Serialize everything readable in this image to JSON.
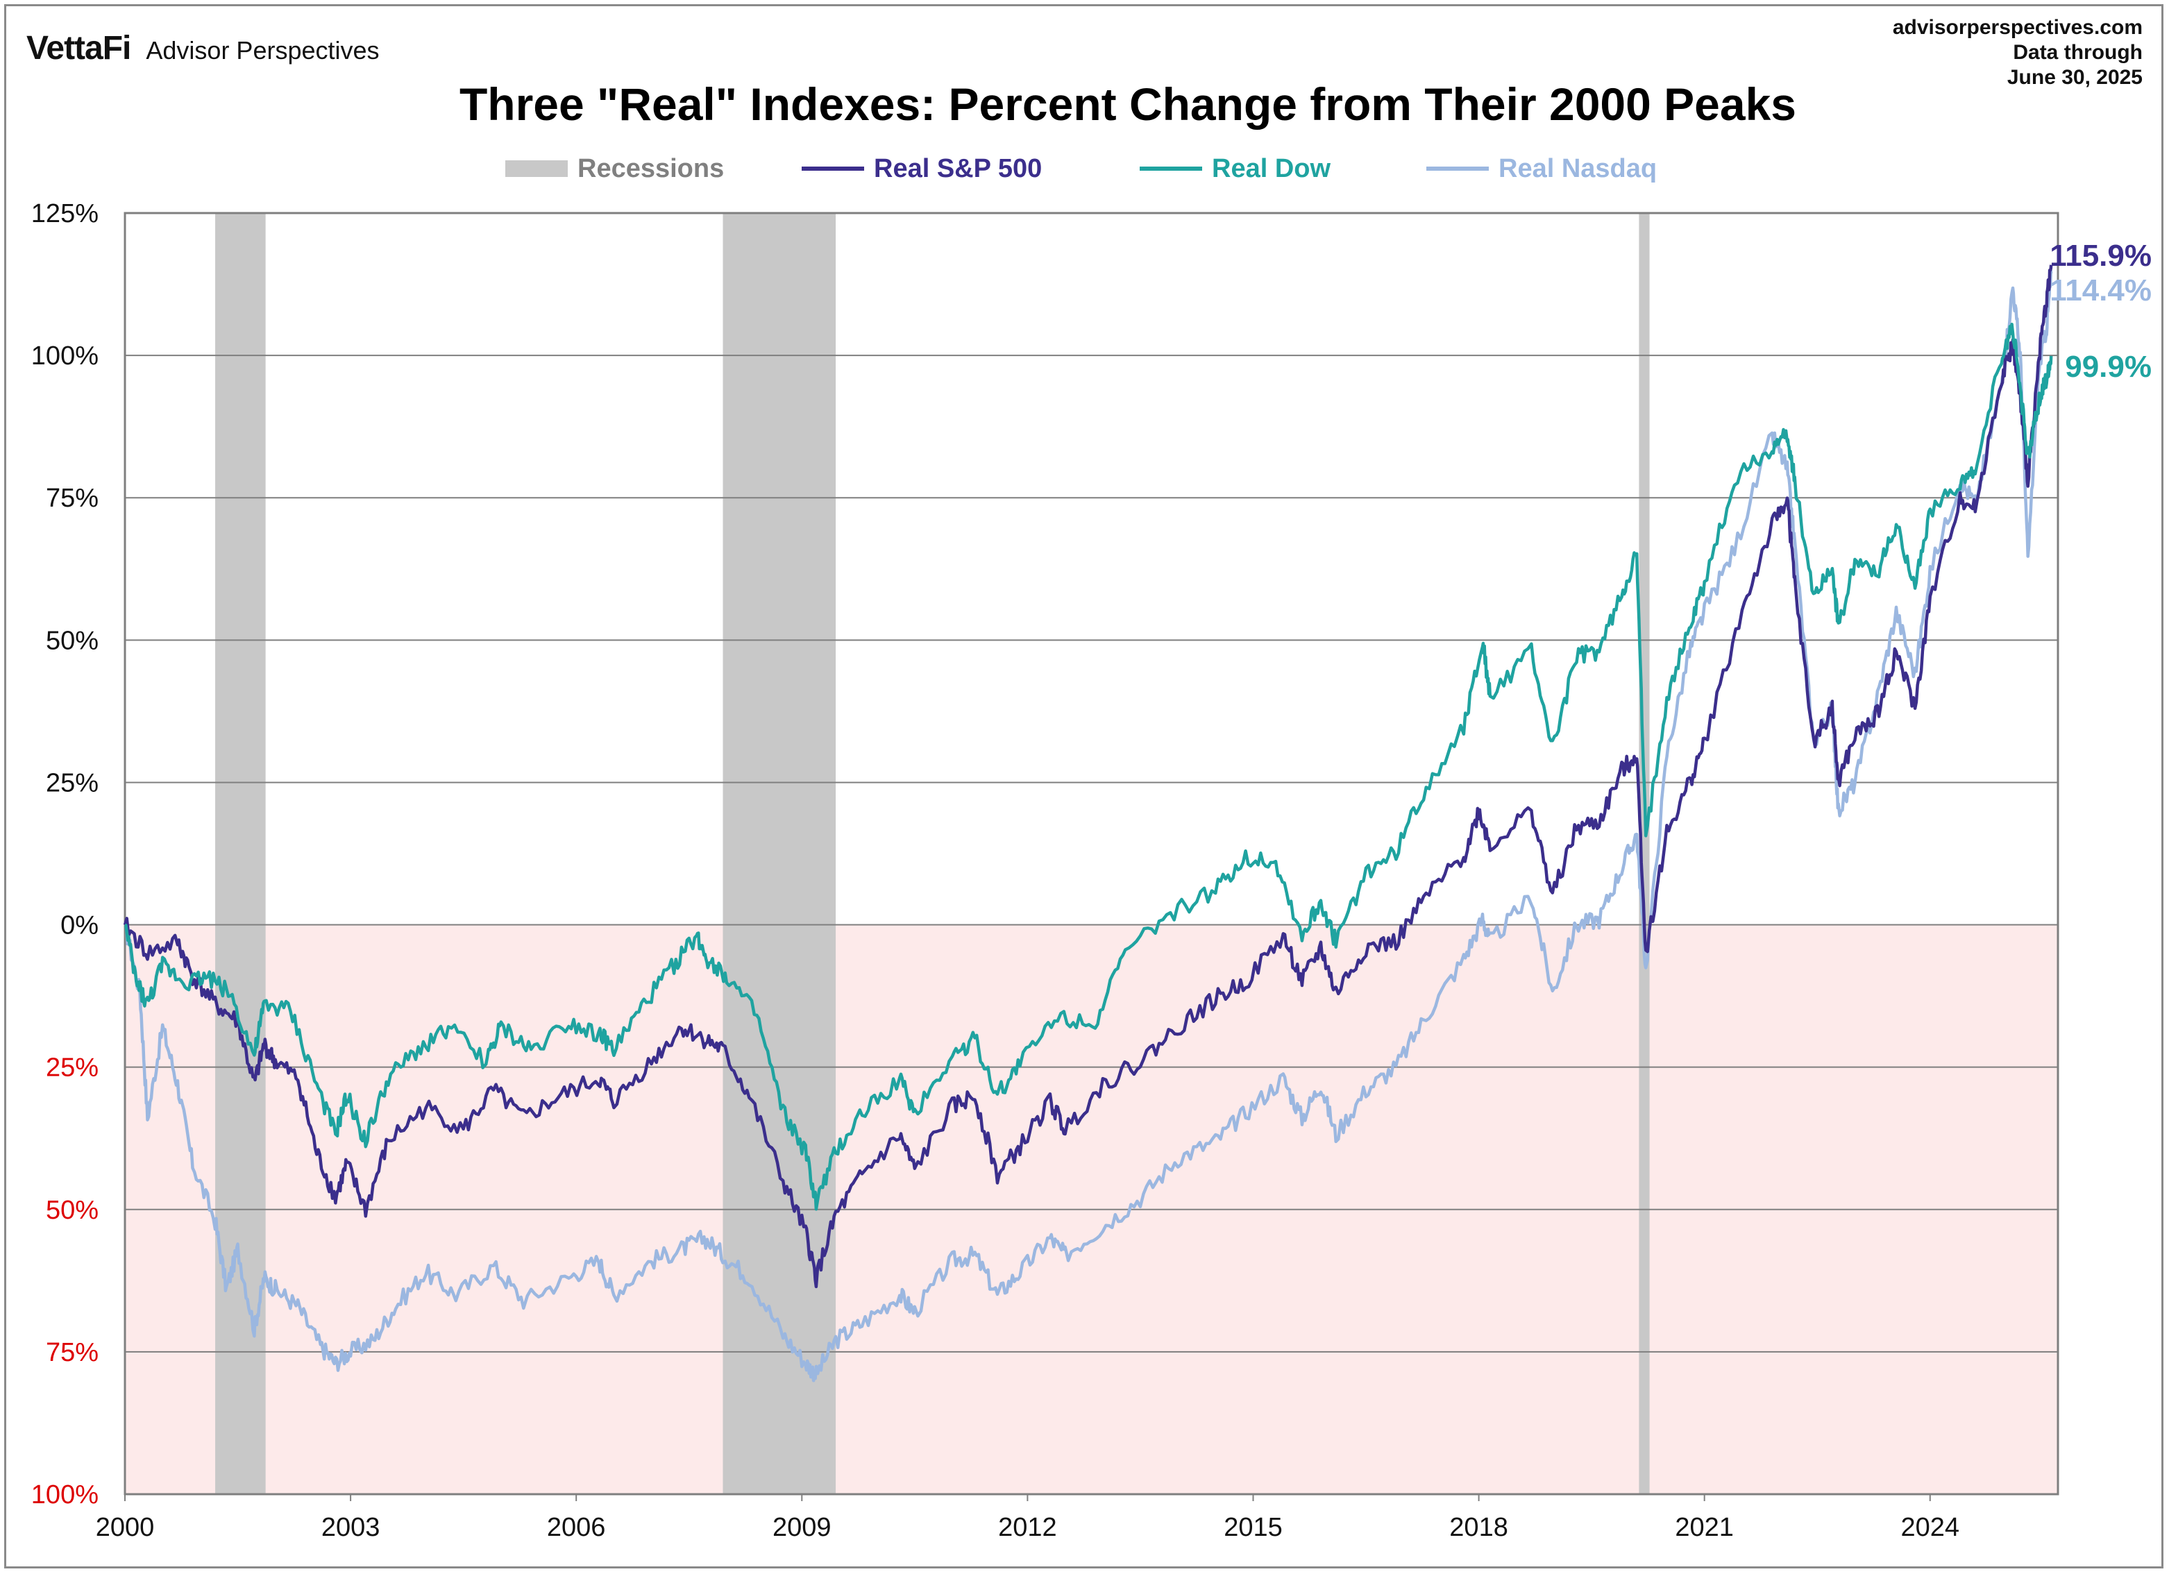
{
  "header": {
    "brand": "VettaFi",
    "brand_sub": "Advisor Perspectives",
    "source_lines": [
      "advisorperspectives.com",
      "Data through",
      "June 30, 2025"
    ]
  },
  "legend": {
    "recessions": "Recessions",
    "sp500": "Real S&P 500",
    "dow": "Real Dow",
    "nasdaq": "Real Nasdaq"
  },
  "colors": {
    "sp500": "#3b2e8c",
    "dow": "#1fa3a0",
    "nasdaq": "#9bb7e0",
    "recession": "#c8c8c8",
    "negative_zone": "#fdeaea",
    "negative_tick": "#dd0000",
    "grid": "#7f7f7f"
  },
  "chart_data": {
    "type": "line",
    "title": "Three \"Real\" Indexes: Percent Change from Their 2000 Peaks",
    "x_ticks": [
      "2000",
      "2003",
      "2006",
      "2009",
      "2012",
      "2015",
      "2018",
      "2021",
      "2024"
    ],
    "y_ticks": [
      {
        "value": 125,
        "label": "125%"
      },
      {
        "value": 100,
        "label": "100%"
      },
      {
        "value": 75,
        "label": "75%"
      },
      {
        "value": 50,
        "label": "50%"
      },
      {
        "value": 25,
        "label": "25%"
      },
      {
        "value": 0,
        "label": "0%"
      },
      {
        "value": -25,
        "label": "25%"
      },
      {
        "value": -50,
        "label": "50%"
      },
      {
        "value": -75,
        "label": "75%"
      },
      {
        "value": -100,
        "label": "100%"
      }
    ],
    "xlim": [
      2000.0,
      2025.7
    ],
    "ylim": [
      -100,
      125
    ],
    "grid": true,
    "shaded_negative_region": true,
    "recessions": [
      [
        2001.2,
        2001.87
      ],
      [
        2007.95,
        2009.45
      ],
      [
        2020.13,
        2020.27
      ]
    ],
    "series": [
      {
        "name": "Real S&P 500",
        "key": "sp500",
        "end_label": "115.9%",
        "end_value": 115.9,
        "points": [
          [
            2000.0,
            0
          ],
          [
            2000.3,
            -5
          ],
          [
            2000.7,
            -3
          ],
          [
            2000.9,
            -9
          ],
          [
            2001.2,
            -14
          ],
          [
            2001.5,
            -17
          ],
          [
            2001.72,
            -28
          ],
          [
            2001.85,
            -21
          ],
          [
            2002.0,
            -24
          ],
          [
            2002.3,
            -27
          ],
          [
            2002.55,
            -40
          ],
          [
            2002.8,
            -48
          ],
          [
            2002.95,
            -42
          ],
          [
            2003.2,
            -50
          ],
          [
            2003.5,
            -38
          ],
          [
            2004.0,
            -32
          ],
          [
            2004.5,
            -36
          ],
          [
            2004.9,
            -29
          ],
          [
            2005.3,
            -34
          ],
          [
            2005.8,
            -30
          ],
          [
            2006.3,
            -27
          ],
          [
            2006.5,
            -31
          ],
          [
            2007.0,
            -24
          ],
          [
            2007.4,
            -18
          ],
          [
            2007.7,
            -20
          ],
          [
            2007.95,
            -22
          ],
          [
            2008.3,
            -30
          ],
          [
            2008.75,
            -45
          ],
          [
            2009.05,
            -54
          ],
          [
            2009.19,
            -62
          ],
          [
            2009.45,
            -51
          ],
          [
            2009.8,
            -44
          ],
          [
            2010.3,
            -37
          ],
          [
            2010.5,
            -43
          ],
          [
            2011.0,
            -32
          ],
          [
            2011.3,
            -30
          ],
          [
            2011.6,
            -44
          ],
          [
            2011.9,
            -39
          ],
          [
            2012.3,
            -31
          ],
          [
            2012.5,
            -36
          ],
          [
            2013.0,
            -28
          ],
          [
            2013.5,
            -24
          ],
          [
            2014.0,
            -18
          ],
          [
            2014.5,
            -13
          ],
          [
            2014.9,
            -10
          ],
          [
            2015.4,
            -2
          ],
          [
            2015.65,
            -10
          ],
          [
            2015.9,
            -4
          ],
          [
            2016.1,
            -12
          ],
          [
            2016.5,
            -4
          ],
          [
            2016.9,
            -3
          ],
          [
            2017.3,
            5
          ],
          [
            2017.8,
            12
          ],
          [
            2018.0,
            20
          ],
          [
            2018.15,
            14
          ],
          [
            2018.7,
            20
          ],
          [
            2018.98,
            5
          ],
          [
            2019.3,
            17
          ],
          [
            2019.6,
            18
          ],
          [
            2019.9,
            27
          ],
          [
            2020.1,
            30
          ],
          [
            2020.22,
            -5
          ],
          [
            2020.5,
            16
          ],
          [
            2020.8,
            25
          ],
          [
            2021.0,
            32
          ],
          [
            2021.5,
            55
          ],
          [
            2021.9,
            70
          ],
          [
            2022.1,
            75
          ],
          [
            2022.2,
            60
          ],
          [
            2022.45,
            32
          ],
          [
            2022.7,
            38
          ],
          [
            2022.78,
            25
          ],
          [
            2023.0,
            33
          ],
          [
            2023.3,
            37
          ],
          [
            2023.55,
            48
          ],
          [
            2023.8,
            38
          ],
          [
            2024.0,
            57
          ],
          [
            2024.4,
            75
          ],
          [
            2024.6,
            73
          ],
          [
            2024.95,
            96
          ],
          [
            2025.1,
            102
          ],
          [
            2025.2,
            92
          ],
          [
            2025.3,
            78
          ],
          [
            2025.45,
            100
          ],
          [
            2025.55,
            110
          ],
          [
            2025.61,
            115.9
          ]
        ]
      },
      {
        "name": "Real Dow",
        "key": "dow",
        "end_label": "99.9%",
        "end_value": 99.9,
        "points": [
          [
            2000.0,
            0
          ],
          [
            2000.15,
            -10
          ],
          [
            2000.3,
            -14
          ],
          [
            2000.5,
            -7
          ],
          [
            2000.8,
            -10
          ],
          [
            2001.1,
            -9
          ],
          [
            2001.4,
            -12
          ],
          [
            2001.72,
            -23
          ],
          [
            2001.85,
            -14
          ],
          [
            2002.2,
            -15
          ],
          [
            2002.55,
            -28
          ],
          [
            2002.8,
            -37
          ],
          [
            2002.95,
            -30
          ],
          [
            2003.2,
            -38
          ],
          [
            2003.5,
            -27
          ],
          [
            2003.9,
            -22
          ],
          [
            2004.3,
            -18
          ],
          [
            2004.8,
            -24
          ],
          [
            2005.0,
            -18
          ],
          [
            2005.4,
            -22
          ],
          [
            2005.9,
            -17
          ],
          [
            2006.3,
            -19
          ],
          [
            2006.5,
            -22
          ],
          [
            2006.9,
            -14
          ],
          [
            2007.3,
            -7
          ],
          [
            2007.6,
            -2
          ],
          [
            2007.75,
            -6
          ],
          [
            2008.0,
            -9
          ],
          [
            2008.4,
            -16
          ],
          [
            2008.75,
            -33
          ],
          [
            2009.05,
            -40
          ],
          [
            2009.19,
            -49
          ],
          [
            2009.45,
            -40
          ],
          [
            2009.8,
            -33
          ],
          [
            2010.3,
            -27
          ],
          [
            2010.5,
            -33
          ],
          [
            2011.0,
            -23
          ],
          [
            2011.3,
            -20
          ],
          [
            2011.6,
            -30
          ],
          [
            2011.9,
            -24
          ],
          [
            2012.4,
            -16
          ],
          [
            2012.9,
            -17
          ],
          [
            2013.3,
            -5
          ],
          [
            2013.9,
            2
          ],
          [
            2014.5,
            6
          ],
          [
            2014.9,
            12
          ],
          [
            2015.3,
            11
          ],
          [
            2015.65,
            -2
          ],
          [
            2015.9,
            4
          ],
          [
            2016.1,
            -3
          ],
          [
            2016.5,
            9
          ],
          [
            2016.9,
            13
          ],
          [
            2017.3,
            24
          ],
          [
            2017.8,
            35
          ],
          [
            2018.05,
            50
          ],
          [
            2018.15,
            40
          ],
          [
            2018.7,
            48
          ],
          [
            2018.98,
            31
          ],
          [
            2019.3,
            47
          ],
          [
            2019.6,
            48
          ],
          [
            2019.9,
            58
          ],
          [
            2020.1,
            65
          ],
          [
            2020.22,
            15
          ],
          [
            2020.5,
            40
          ],
          [
            2020.8,
            52
          ],
          [
            2021.0,
            60
          ],
          [
            2021.4,
            78
          ],
          [
            2021.9,
            84
          ],
          [
            2022.1,
            86
          ],
          [
            2022.2,
            78
          ],
          [
            2022.45,
            58
          ],
          [
            2022.7,
            63
          ],
          [
            2022.78,
            52
          ],
          [
            2023.0,
            64
          ],
          [
            2023.3,
            62
          ],
          [
            2023.55,
            70
          ],
          [
            2023.8,
            60
          ],
          [
            2024.0,
            72
          ],
          [
            2024.4,
            78
          ],
          [
            2024.6,
            79
          ],
          [
            2024.95,
            100
          ],
          [
            2025.1,
            105
          ],
          [
            2025.2,
            94
          ],
          [
            2025.3,
            82
          ],
          [
            2025.45,
            92
          ],
          [
            2025.55,
            96
          ],
          [
            2025.61,
            99.9
          ]
        ]
      },
      {
        "name": "Real Nasdaq",
        "key": "nasdaq",
        "end_label": "114.4%",
        "end_value": 114.4,
        "points": [
          [
            2000.0,
            0
          ],
          [
            2000.2,
            -12
          ],
          [
            2000.3,
            -34
          ],
          [
            2000.5,
            -18
          ],
          [
            2000.7,
            -28
          ],
          [
            2000.9,
            -42
          ],
          [
            2001.2,
            -52
          ],
          [
            2001.35,
            -64
          ],
          [
            2001.5,
            -57
          ],
          [
            2001.72,
            -71
          ],
          [
            2001.85,
            -62
          ],
          [
            2002.0,
            -64
          ],
          [
            2002.3,
            -67
          ],
          [
            2002.6,
            -74
          ],
          [
            2002.8,
            -77
          ],
          [
            2003.0,
            -75
          ],
          [
            2003.3,
            -73
          ],
          [
            2003.6,
            -67
          ],
          [
            2004.0,
            -61
          ],
          [
            2004.4,
            -65
          ],
          [
            2004.9,
            -60
          ],
          [
            2005.3,
            -66
          ],
          [
            2005.9,
            -62
          ],
          [
            2006.3,
            -59
          ],
          [
            2006.5,
            -65
          ],
          [
            2007.0,
            -59
          ],
          [
            2007.4,
            -57
          ],
          [
            2007.7,
            -55
          ],
          [
            2007.95,
            -58
          ],
          [
            2008.3,
            -62
          ],
          [
            2008.75,
            -72
          ],
          [
            2009.05,
            -77
          ],
          [
            2009.19,
            -79
          ],
          [
            2009.45,
            -73
          ],
          [
            2009.8,
            -70
          ],
          [
            2010.3,
            -65
          ],
          [
            2010.5,
            -68
          ],
          [
            2011.0,
            -59
          ],
          [
            2011.3,
            -58
          ],
          [
            2011.6,
            -65
          ],
          [
            2011.9,
            -61
          ],
          [
            2012.3,
            -55
          ],
          [
            2012.5,
            -58
          ],
          [
            2013.0,
            -53
          ],
          [
            2013.5,
            -48
          ],
          [
            2014.0,
            -41
          ],
          [
            2014.5,
            -38
          ],
          [
            2014.9,
            -33
          ],
          [
            2015.4,
            -27
          ],
          [
            2015.65,
            -34
          ],
          [
            2015.9,
            -28
          ],
          [
            2016.1,
            -37
          ],
          [
            2016.5,
            -29
          ],
          [
            2016.9,
            -25
          ],
          [
            2017.3,
            -16
          ],
          [
            2017.8,
            -6
          ],
          [
            2018.05,
            1
          ],
          [
            2018.15,
            -3
          ],
          [
            2018.7,
            5
          ],
          [
            2018.98,
            -12
          ],
          [
            2019.3,
            0
          ],
          [
            2019.6,
            1
          ],
          [
            2019.9,
            10
          ],
          [
            2020.1,
            16
          ],
          [
            2020.22,
            -8
          ],
          [
            2020.5,
            30
          ],
          [
            2020.8,
            48
          ],
          [
            2021.0,
            55
          ],
          [
            2021.4,
            66
          ],
          [
            2021.9,
            86
          ],
          [
            2022.1,
            80
          ],
          [
            2022.2,
            67
          ],
          [
            2022.45,
            32
          ],
          [
            2022.7,
            38
          ],
          [
            2022.78,
            20
          ],
          [
            2023.0,
            25
          ],
          [
            2023.3,
            40
          ],
          [
            2023.55,
            55
          ],
          [
            2023.8,
            44
          ],
          [
            2024.0,
            62
          ],
          [
            2024.4,
            78
          ],
          [
            2024.6,
            74
          ],
          [
            2024.95,
            95
          ],
          [
            2025.1,
            112
          ],
          [
            2025.2,
            100
          ],
          [
            2025.3,
            64
          ],
          [
            2025.45,
            98
          ],
          [
            2025.55,
            105
          ],
          [
            2025.61,
            114.4
          ]
        ]
      }
    ]
  }
}
